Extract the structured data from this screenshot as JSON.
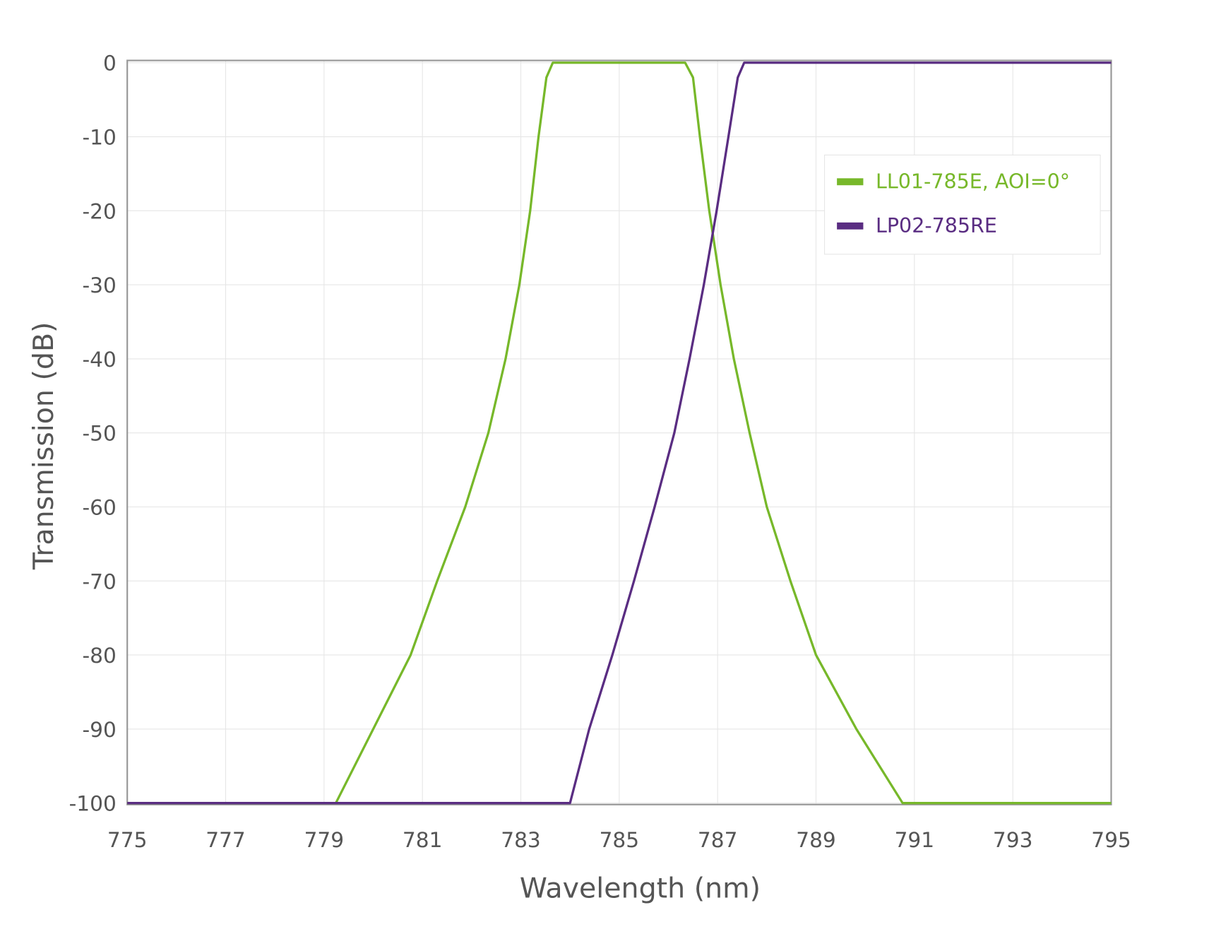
{
  "chart_data": {
    "type": "line",
    "xlabel": "Wavelength (nm)",
    "ylabel": "Transmission (dB)",
    "xlim": [
      775,
      795
    ],
    "xticks": [
      775,
      777,
      779,
      781,
      783,
      785,
      787,
      789,
      791,
      793,
      795
    ],
    "ylim": [
      -100.2,
      0.3
    ],
    "yticks": [
      0,
      -10,
      -20,
      -30,
      -40,
      -50,
      -60,
      -70,
      -80,
      -90,
      -100
    ],
    "grid": true,
    "legend": "upper right",
    "series": [
      {
        "name": "LL01-785E, AOI=0°",
        "color": "#77b82a",
        "x": [
          775,
          779.24,
          780.76,
          781.3,
          781.87,
          782.34,
          782.69,
          782.97,
          783.19,
          783.36,
          783.52,
          783.65,
          786.34,
          786.5,
          786.64,
          786.83,
          787.06,
          787.33,
          787.65,
          788.0,
          788.48,
          789.0,
          789.82,
          790.76,
          795
        ],
        "values": [
          -100,
          -100,
          -80,
          -70,
          -60,
          -50,
          -40,
          -30,
          -20,
          -10,
          -2,
          0,
          0,
          -2,
          -10,
          -20,
          -30,
          -40,
          -50,
          -60,
          -70,
          -80,
          -90,
          -100,
          -100
        ]
      },
      {
        "name": "LP02-785RE",
        "color": "#5a2d82",
        "x": [
          775,
          784.0,
          784.39,
          784.86,
          785.3,
          785.72,
          786.12,
          786.43,
          786.72,
          786.98,
          787.22,
          787.41,
          787.54,
          795
        ],
        "values": [
          -100,
          -100,
          -90,
          -80,
          -70,
          -60,
          -50,
          -40,
          -30,
          -20,
          -10,
          -2,
          0,
          0
        ]
      }
    ]
  }
}
